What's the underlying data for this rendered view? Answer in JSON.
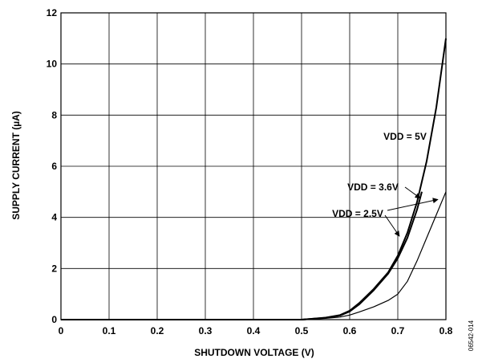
{
  "chart_data": {
    "type": "line",
    "title": "",
    "xlabel": "SHUTDOWN VOLTAGE (V)",
    "ylabel": "SUPPLY CURRENT (µA)",
    "xlim": [
      0,
      0.8
    ],
    "ylim": [
      0,
      12
    ],
    "grid": true,
    "x_ticks": [
      "0",
      "0.1",
      "0.2",
      "0.3",
      "0.4",
      "0.5",
      "0.6",
      "0.7",
      "0.8"
    ],
    "y_ticks": [
      "0",
      "2",
      "4",
      "6",
      "8",
      "10",
      "12"
    ],
    "series": [
      {
        "name": "VDD = 5V",
        "x": [
          0,
          0.5,
          0.55,
          0.58,
          0.6,
          0.62,
          0.65,
          0.68,
          0.7,
          0.72,
          0.74,
          0.76,
          0.78,
          0.8
        ],
        "y": [
          0,
          0,
          0.08,
          0.18,
          0.35,
          0.65,
          1.2,
          1.85,
          2.5,
          3.4,
          4.6,
          6.2,
          8.3,
          11
        ]
      },
      {
        "name": "VDD = 3.6V",
        "x": [
          0,
          0.5,
          0.55,
          0.58,
          0.6,
          0.62,
          0.65,
          0.68,
          0.7,
          0.72,
          0.74,
          0.75
        ],
        "y": [
          0,
          0,
          0.07,
          0.16,
          0.32,
          0.6,
          1.15,
          1.8,
          2.4,
          3.2,
          4.3,
          5.0
        ]
      },
      {
        "name": "VDD = 2.5V",
        "x": [
          0,
          0.5,
          0.55,
          0.58,
          0.6,
          0.62,
          0.65,
          0.68,
          0.7,
          0.72,
          0.74,
          0.76,
          0.78,
          0.8
        ],
        "y": [
          0,
          0,
          0.05,
          0.1,
          0.18,
          0.3,
          0.5,
          0.75,
          1.0,
          1.5,
          2.3,
          3.2,
          4.1,
          5.0
        ]
      }
    ],
    "annotations": [
      {
        "text": "VDD = 5V",
        "series": "VDD = 5V"
      },
      {
        "text": "VDD = 3.6V",
        "series": "VDD = 3.6V"
      },
      {
        "text": "VDD = 2.5V",
        "series": "VDD = 2.5V"
      }
    ]
  },
  "figure_id": "06542-014"
}
